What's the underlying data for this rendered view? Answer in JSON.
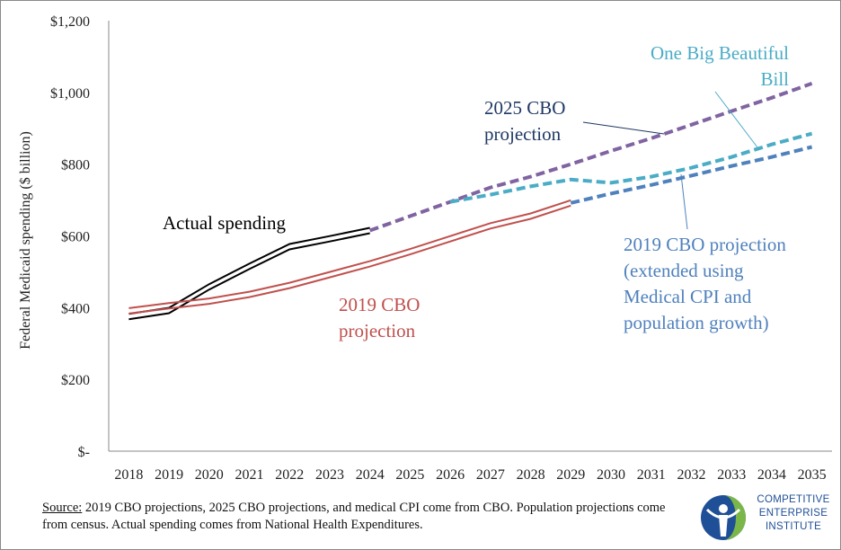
{
  "chart_data": {
    "type": "line",
    "ylabel": "Federal Medicaid spending ($ billion)",
    "xlabel": "",
    "ylim": [
      0,
      1200
    ],
    "yticks": [
      "$-",
      "$200",
      "$400",
      "$600",
      "$800",
      "$1,000",
      "$1,200"
    ],
    "ytick_values": [
      0,
      200,
      400,
      600,
      800,
      1000,
      1200
    ],
    "categories": [
      "2018",
      "2019",
      "2020",
      "2021",
      "2022",
      "2023",
      "2024",
      "2025",
      "2026",
      "2027",
      "2028",
      "2029",
      "2030",
      "2031",
      "2032",
      "2033",
      "2034",
      "2035"
    ],
    "grid": false,
    "series": [
      {
        "name": "Actual spending",
        "color": "#000000",
        "style": "double",
        "x": [
          2018,
          2019,
          2020,
          2021,
          2022,
          2023,
          2024
        ],
        "values": [
          375,
          392,
          458,
          515,
          570,
          592,
          615
        ]
      },
      {
        "name": "2019 CBO projection",
        "color": "#c0504d",
        "style": "double",
        "x": [
          2018,
          2019,
          2020,
          2021,
          2022,
          2023,
          2024,
          2025,
          2026,
          2027,
          2028,
          2029
        ],
        "values": [
          391,
          405,
          418,
          437,
          462,
          492,
          522,
          556,
          592,
          628,
          655,
          692
        ]
      },
      {
        "name": "2025 CBO projection",
        "color": "#8064a2",
        "style": "dashed",
        "x": [
          2024,
          2025,
          2026,
          2027,
          2028,
          2029,
          2030,
          2031,
          2032,
          2033,
          2034,
          2035
        ],
        "values": [
          615,
          655,
          695,
          735,
          765,
          800,
          837,
          872,
          910,
          948,
          985,
          1025
        ]
      },
      {
        "name": "One Big Beautiful Bill",
        "color": "#4bacc6",
        "style": "dashed",
        "x": [
          2026,
          2027,
          2028,
          2029,
          2030,
          2031,
          2032,
          2033,
          2034,
          2035
        ],
        "values": [
          695,
          715,
          738,
          757,
          748,
          765,
          790,
          820,
          855,
          885
        ]
      },
      {
        "name": "2019 CBO projection (extended using Medical CPI and population growth)",
        "color": "#4f81bd",
        "style": "dashed",
        "x": [
          2029,
          2030,
          2031,
          2032,
          2033,
          2034,
          2035
        ],
        "values": [
          692,
          718,
          742,
          768,
          795,
          820,
          848
        ]
      }
    ],
    "annotations": [
      {
        "id": "actual",
        "lines": [
          "Actual spending"
        ],
        "color": "#000000"
      },
      {
        "id": "cbo2019",
        "lines": [
          "2019 CBO",
          "projection"
        ],
        "color": "#c0504d"
      },
      {
        "id": "cbo2025",
        "lines": [
          "2025 CBO",
          "projection"
        ],
        "color": "#1f3864"
      },
      {
        "id": "obbb",
        "lines": [
          "One Big Beautiful",
          "Bill"
        ],
        "color": "#4bacc6"
      },
      {
        "id": "extended",
        "lines": [
          "2019 CBO projection",
          "(extended using",
          "Medical CPI and",
          "population growth)"
        ],
        "color": "#4f81bd"
      }
    ]
  },
  "source": {
    "label": "Source:",
    "text": " 2019 CBO projections, 2025 CBO projections, and medical CPI come from CBO. Population projections come from census. Actual spending comes from National Health Expenditures."
  },
  "logo": {
    "lines": [
      "COMPETITIVE",
      "ENTERPRISE",
      "INSTITUTE"
    ],
    "colors": {
      "blue": "#1f4f96",
      "green": "#7ab648"
    }
  }
}
